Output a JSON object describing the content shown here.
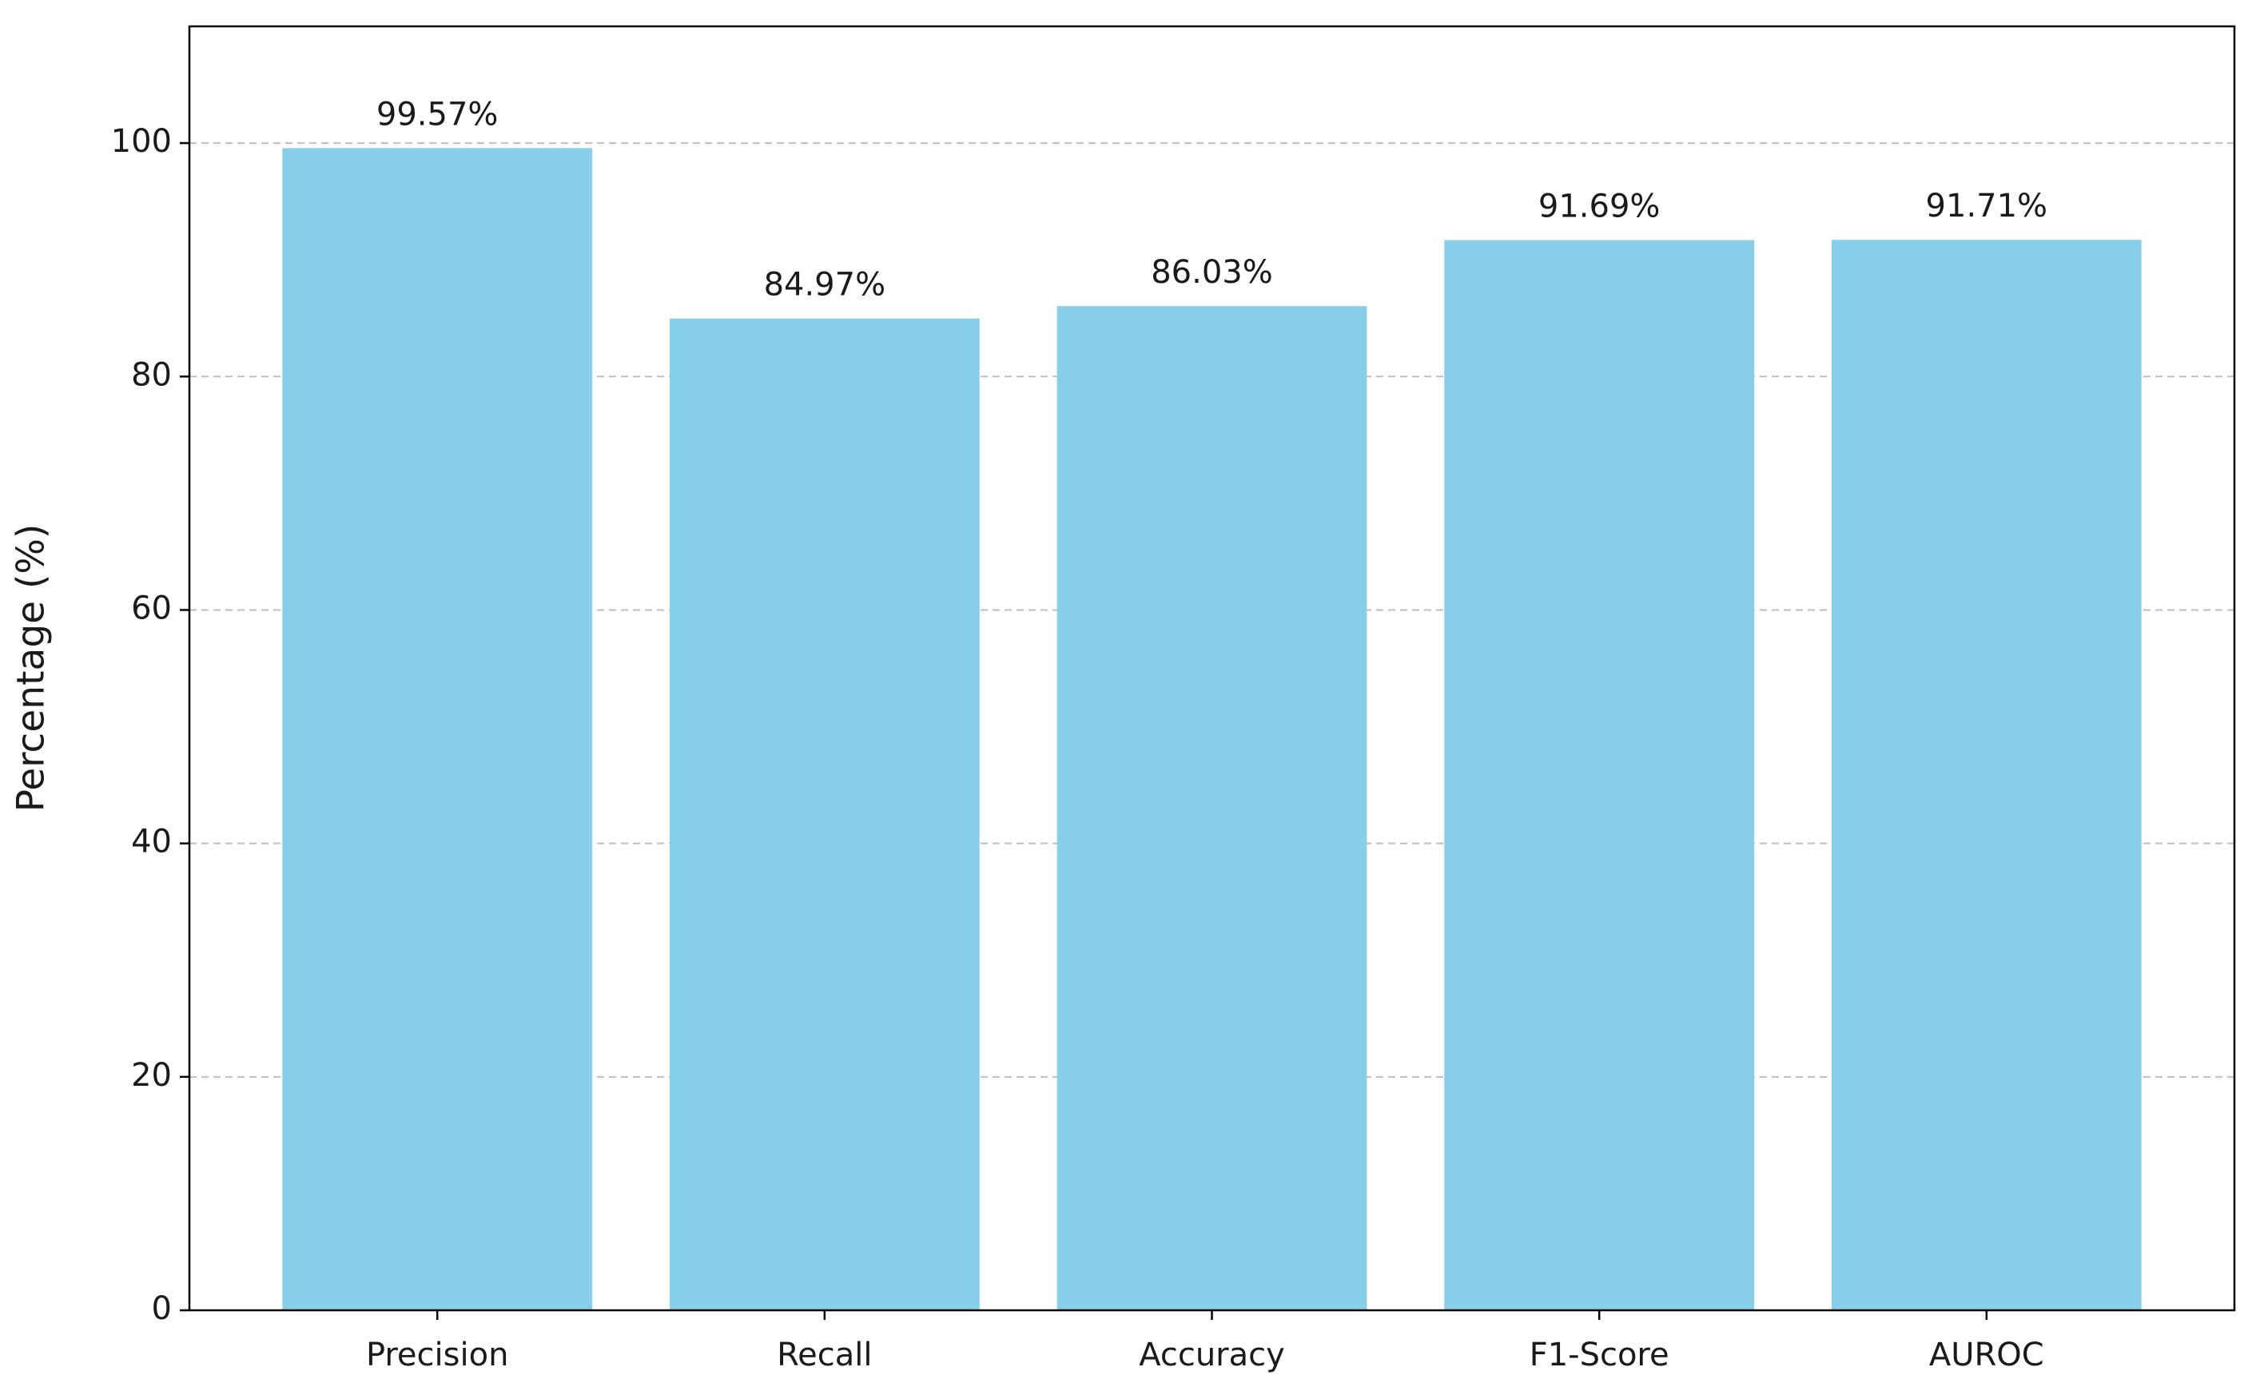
{
  "chart_data": {
    "type": "bar",
    "y_label": "Percentage (%)",
    "categories": [
      "Precision",
      "Recall",
      "Accuracy",
      "F1-Score",
      "AUROC"
    ],
    "values": [
      99.57,
      84.97,
      86.03,
      91.69,
      91.71
    ],
    "value_labels": [
      "99.57%",
      "84.97%",
      "86.03%",
      "91.69%",
      "91.71%"
    ],
    "color": "#87ceeb",
    "ylim": [
      0,
      110
    ],
    "yticks": [
      0,
      20,
      40,
      60,
      80,
      100
    ],
    "grid": true
  }
}
